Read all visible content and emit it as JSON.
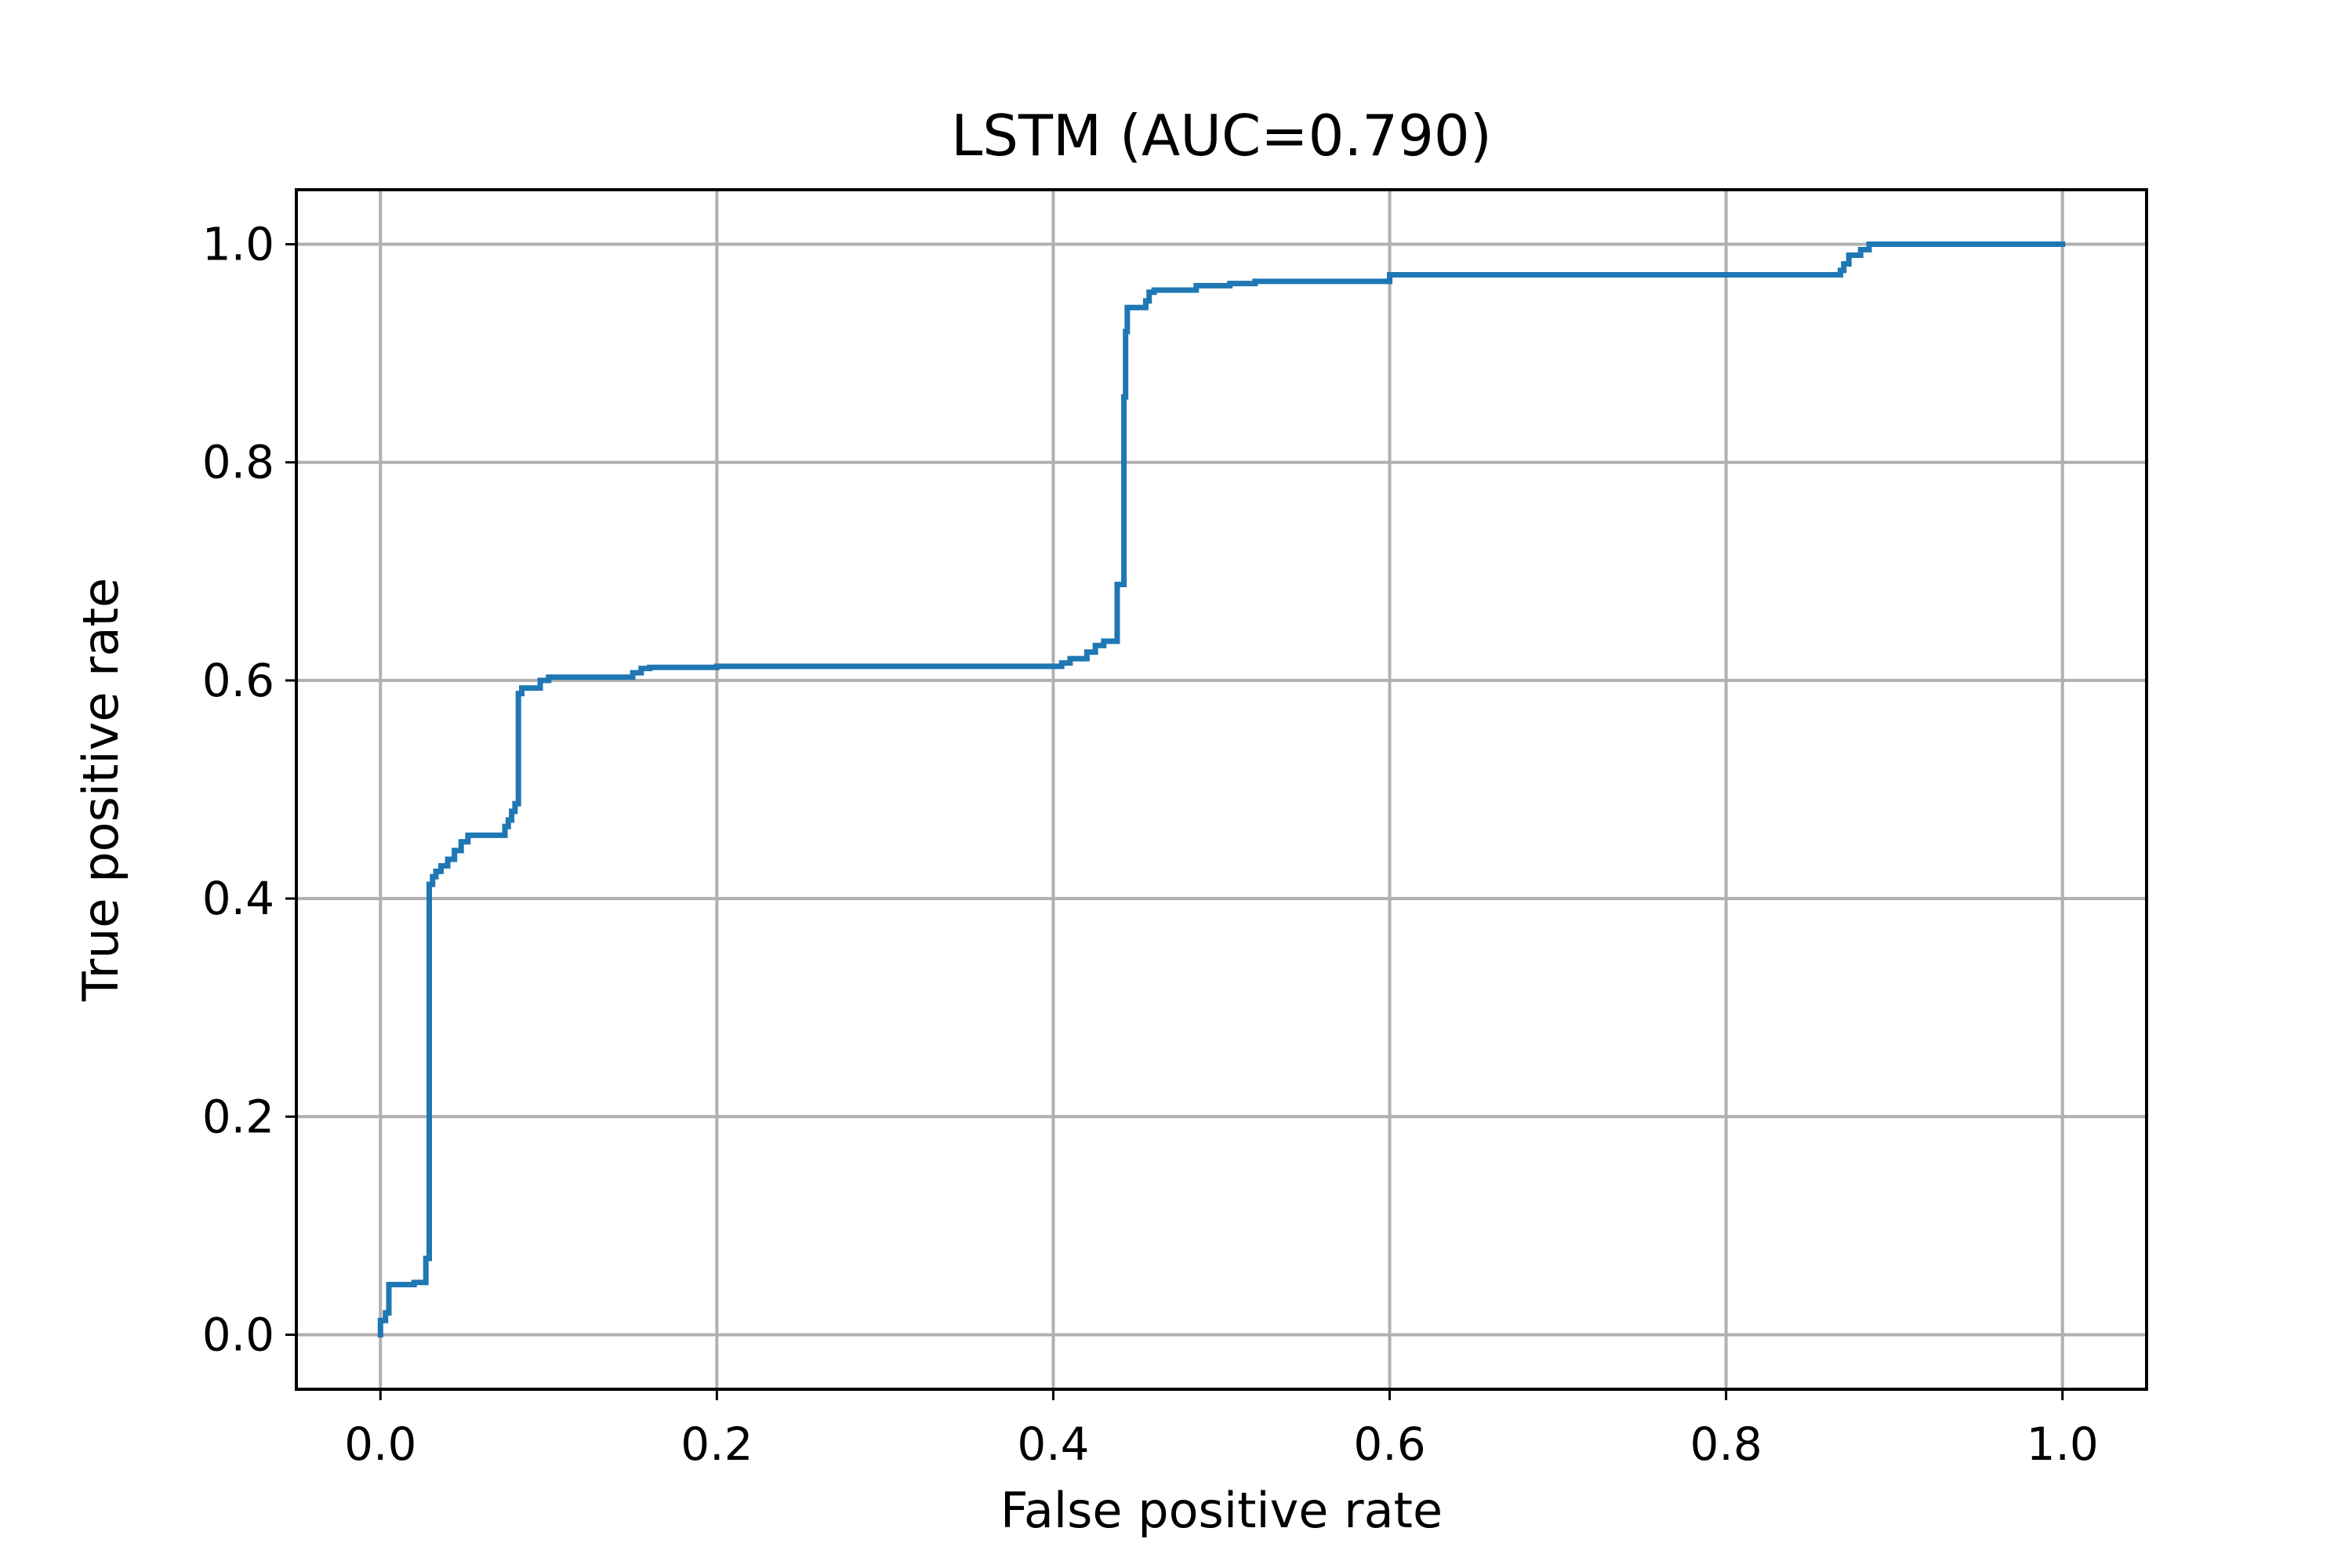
{
  "chart_data": {
    "type": "line",
    "title": "LSTM (AUC=0.790)",
    "xlabel": "False positive rate",
    "ylabel": "True positive rate",
    "xlim": [
      -0.05,
      1.05
    ],
    "ylim": [
      -0.05,
      1.05
    ],
    "xticks": [
      0.0,
      0.2,
      0.4,
      0.6,
      0.8,
      1.0
    ],
    "yticks": [
      0.0,
      0.2,
      0.4,
      0.6,
      0.8,
      1.0
    ],
    "xtick_labels": [
      "0.0",
      "0.2",
      "0.4",
      "0.6",
      "0.8",
      "1.0"
    ],
    "ytick_labels": [
      "0.0",
      "0.2",
      "0.4",
      "0.6",
      "0.8",
      "1.0"
    ],
    "grid": true,
    "series_color": "#1f77b4",
    "series": [
      {
        "x": [
          0.0,
          0.0,
          0.003,
          0.003,
          0.005,
          0.005,
          0.02,
          0.02,
          0.027,
          0.027,
          0.029,
          0.029,
          0.031,
          0.031,
          0.033,
          0.033,
          0.036,
          0.036,
          0.04,
          0.04,
          0.044,
          0.044,
          0.048,
          0.048,
          0.052,
          0.052,
          0.074,
          0.074,
          0.076,
          0.076,
          0.078,
          0.078,
          0.08,
          0.08,
          0.082,
          0.082,
          0.084,
          0.084,
          0.095,
          0.095,
          0.1,
          0.1,
          0.15,
          0.15,
          0.155,
          0.155,
          0.16,
          0.16,
          0.2,
          0.2,
          0.405,
          0.405,
          0.41,
          0.41,
          0.42,
          0.42,
          0.425,
          0.425,
          0.43,
          0.43,
          0.438,
          0.438,
          0.442,
          0.442,
          0.443,
          0.443,
          0.444,
          0.444,
          0.455,
          0.455,
          0.457,
          0.457,
          0.46,
          0.46,
          0.485,
          0.485,
          0.505,
          0.505,
          0.52,
          0.52,
          0.6,
          0.6,
          0.868,
          0.868,
          0.87,
          0.87,
          0.873,
          0.873,
          0.88,
          0.88,
          0.885,
          0.885,
          1.0
        ],
        "y": [
          0.0,
          0.013,
          0.013,
          0.02,
          0.02,
          0.046,
          0.046,
          0.048,
          0.048,
          0.07,
          0.07,
          0.413,
          0.413,
          0.42,
          0.42,
          0.425,
          0.425,
          0.43,
          0.43,
          0.436,
          0.436,
          0.444,
          0.444,
          0.452,
          0.452,
          0.458,
          0.458,
          0.466,
          0.466,
          0.472,
          0.472,
          0.48,
          0.48,
          0.487,
          0.487,
          0.588,
          0.588,
          0.593,
          0.593,
          0.6,
          0.6,
          0.603,
          0.603,
          0.607,
          0.607,
          0.611,
          0.611,
          0.612,
          0.612,
          0.613,
          0.613,
          0.616,
          0.616,
          0.62,
          0.62,
          0.626,
          0.626,
          0.632,
          0.632,
          0.636,
          0.636,
          0.688,
          0.688,
          0.86,
          0.86,
          0.92,
          0.92,
          0.942,
          0.942,
          0.948,
          0.948,
          0.956,
          0.956,
          0.958,
          0.958,
          0.962,
          0.962,
          0.964,
          0.964,
          0.966,
          0.966,
          0.972,
          0.972,
          0.976,
          0.976,
          0.982,
          0.982,
          0.99,
          0.99,
          0.995,
          0.995,
          1.0,
          1.0
        ]
      }
    ]
  }
}
